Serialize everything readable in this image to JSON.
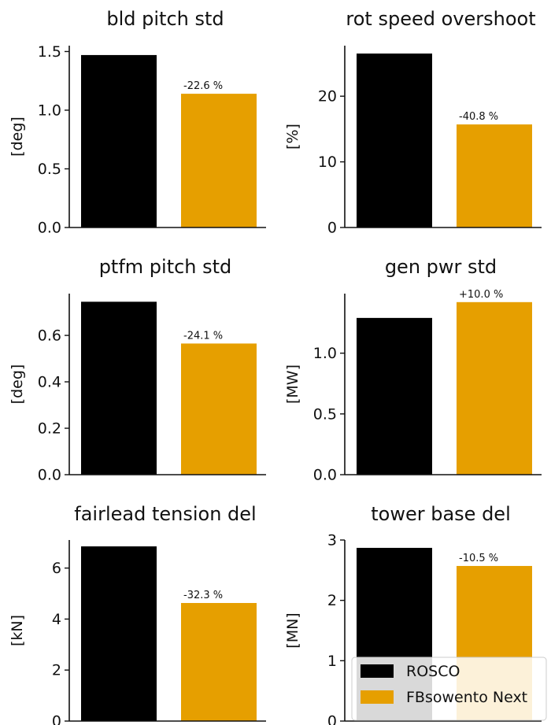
{
  "colors": {
    "ROSCO": "#000000",
    "FBsowento Next": "#E69F00"
  },
  "legend": {
    "items": [
      "ROSCO",
      "FBsowento Next"
    ],
    "placement": "lower-right"
  },
  "chart_data": [
    {
      "type": "bar",
      "title": "bld pitch std",
      "ylabel": "[deg]",
      "ylim": [
        0,
        1.55
      ],
      "yticks": [
        0.0,
        0.5,
        1.0,
        1.5
      ],
      "yticklabels": [
        "0.0",
        "0.5",
        "1.0",
        "1.5"
      ],
      "categories": [
        "ROSCO",
        "FBsowento Next"
      ],
      "values": [
        1.47,
        1.14
      ],
      "annotation": "-22.6 %"
    },
    {
      "type": "bar",
      "title": "rot speed overshoot",
      "ylabel": "[%]",
      "ylim": [
        0,
        27.7
      ],
      "yticks": [
        0,
        10,
        20
      ],
      "yticklabels": [
        "0",
        "10",
        "20"
      ],
      "categories": [
        "ROSCO",
        "FBsowento Next"
      ],
      "values": [
        26.5,
        15.7
      ],
      "annotation": "-40.8 %"
    },
    {
      "type": "bar",
      "title": "ptfm pitch std",
      "ylabel": "[deg]",
      "ylim": [
        0,
        0.78
      ],
      "yticks": [
        0.0,
        0.2,
        0.4,
        0.6
      ],
      "yticklabels": [
        "0.0",
        "0.2",
        "0.4",
        "0.6"
      ],
      "categories": [
        "ROSCO",
        "FBsowento Next"
      ],
      "values": [
        0.745,
        0.565
      ],
      "annotation": "-24.1 %"
    },
    {
      "type": "bar",
      "title": "gen pwr std",
      "ylabel": "[MW]",
      "ylim": [
        0,
        1.49
      ],
      "yticks": [
        0.0,
        0.5,
        1.0
      ],
      "yticklabels": [
        "0.0",
        "0.5",
        "1.0"
      ],
      "categories": [
        "ROSCO",
        "FBsowento Next"
      ],
      "values": [
        1.29,
        1.42
      ],
      "annotation": "+10.0 %"
    },
    {
      "type": "bar",
      "title": "fairlead tension del",
      "ylabel": "[kN]",
      "ylim": [
        0,
        7.1
      ],
      "yticks": [
        0,
        2,
        4,
        6
      ],
      "yticklabels": [
        "0",
        "2",
        "4",
        "6"
      ],
      "categories": [
        "ROSCO",
        "FBsowento Next"
      ],
      "values": [
        6.85,
        4.63
      ],
      "annotation": "-32.3 %"
    },
    {
      "type": "bar",
      "title": "tower base del",
      "ylabel": "[MN]",
      "ylim": [
        0,
        3.0
      ],
      "yticks": [
        0,
        1,
        2,
        3
      ],
      "yticklabels": [
        "0",
        "1",
        "2",
        "3"
      ],
      "categories": [
        "ROSCO",
        "FBsowento Next"
      ],
      "values": [
        2.87,
        2.57
      ],
      "annotation": "-10.5 %"
    }
  ]
}
